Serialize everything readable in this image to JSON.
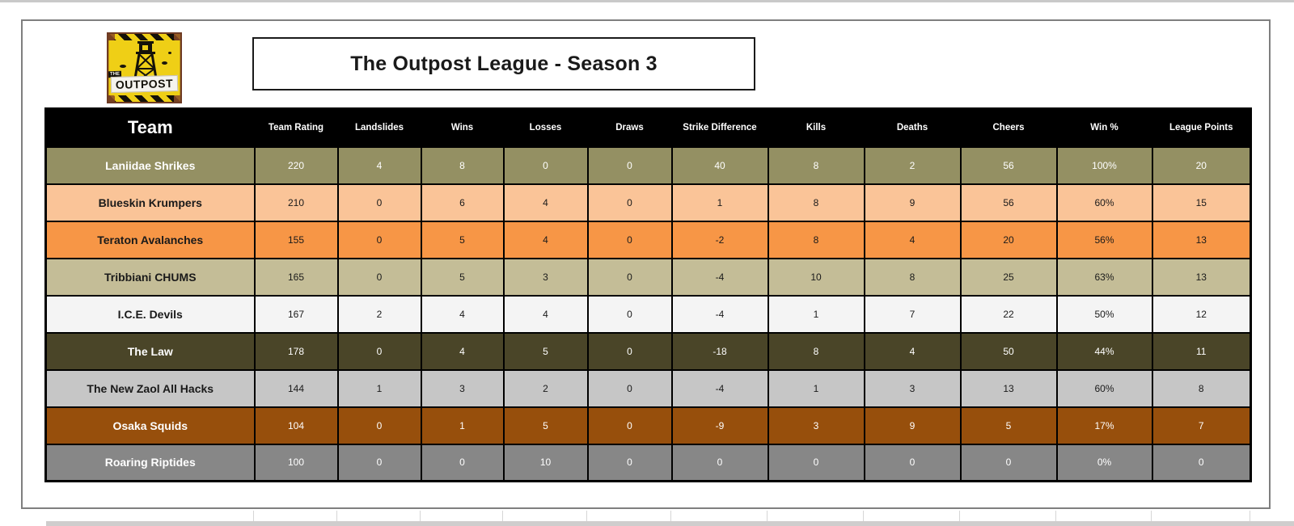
{
  "header": {
    "title": "The Outpost League - Season 3"
  },
  "logo": {
    "name": "outpost-logo",
    "brand_top": "THE",
    "brand": "OUTPOST",
    "sign_color": "#EFCF16",
    "ink_color": "#15120A"
  },
  "table": {
    "header_bg": "#000000",
    "header_fg": "#FFFFFF",
    "columns": [
      {
        "key": "team",
        "label": "Team"
      },
      {
        "key": "rating",
        "label": "Team Rating"
      },
      {
        "key": "landslides",
        "label": "Landslides"
      },
      {
        "key": "wins",
        "label": "Wins"
      },
      {
        "key": "losses",
        "label": "Losses"
      },
      {
        "key": "draws",
        "label": "Draws"
      },
      {
        "key": "strike_difference",
        "label": "Strike Difference"
      },
      {
        "key": "kills",
        "label": "Kills"
      },
      {
        "key": "deaths",
        "label": "Deaths"
      },
      {
        "key": "cheers",
        "label": "Cheers"
      },
      {
        "key": "win_pct",
        "label": "Win %"
      },
      {
        "key": "league_points",
        "label": "League Points"
      }
    ],
    "rows": [
      {
        "team": "Laniidae Shrikes",
        "rating": "220",
        "landslides": "4",
        "wins": "8",
        "losses": "0",
        "draws": "0",
        "strike_difference": "40",
        "kills": "8",
        "deaths": "2",
        "cheers": "56",
        "win_pct": "100%",
        "league_points": "20",
        "bg": "#949063",
        "fg": "#FFFFFF"
      },
      {
        "team": "Blueskin Krumpers",
        "rating": "210",
        "landslides": "0",
        "wins": "6",
        "losses": "4",
        "draws": "0",
        "strike_difference": "1",
        "kills": "8",
        "deaths": "9",
        "cheers": "56",
        "win_pct": "60%",
        "league_points": "15",
        "bg": "#FAC498",
        "fg": "#1A1A1A"
      },
      {
        "team": "Teraton Avalanches",
        "rating": "155",
        "landslides": "0",
        "wins": "5",
        "losses": "4",
        "draws": "0",
        "strike_difference": "-2",
        "kills": "8",
        "deaths": "4",
        "cheers": "20",
        "win_pct": "56%",
        "league_points": "13",
        "bg": "#F79646",
        "fg": "#1A1A1A"
      },
      {
        "team": "Tribbiani CHUMS",
        "rating": "165",
        "landslides": "0",
        "wins": "5",
        "losses": "3",
        "draws": "0",
        "strike_difference": "-4",
        "kills": "10",
        "deaths": "8",
        "cheers": "25",
        "win_pct": "63%",
        "league_points": "13",
        "bg": "#C4BD97",
        "fg": "#1A1A1A"
      },
      {
        "team": "I.C.E. Devils",
        "rating": "167",
        "landslides": "2",
        "wins": "4",
        "losses": "4",
        "draws": "0",
        "strike_difference": "-4",
        "kills": "1",
        "deaths": "7",
        "cheers": "22",
        "win_pct": "50%",
        "league_points": "12",
        "bg": "#F4F4F4",
        "fg": "#1A1A1A"
      },
      {
        "team": "The Law",
        "rating": "178",
        "landslides": "0",
        "wins": "4",
        "losses": "5",
        "draws": "0",
        "strike_difference": "-18",
        "kills": "8",
        "deaths": "4",
        "cheers": "50",
        "win_pct": "44%",
        "league_points": "11",
        "bg": "#4A4528",
        "fg": "#FFFFFF"
      },
      {
        "team": "The New Zaol All Hacks",
        "rating": "144",
        "landslides": "1",
        "wins": "3",
        "losses": "2",
        "draws": "0",
        "strike_difference": "-4",
        "kills": "1",
        "deaths": "3",
        "cheers": "13",
        "win_pct": "60%",
        "league_points": "8",
        "bg": "#C6C6C6",
        "fg": "#1A1A1A"
      },
      {
        "team": "Osaka Squids",
        "rating": "104",
        "landslides": "0",
        "wins": "1",
        "losses": "5",
        "draws": "0",
        "strike_difference": "-9",
        "kills": "3",
        "deaths": "9",
        "cheers": "5",
        "win_pct": "17%",
        "league_points": "7",
        "bg": "#974F0C",
        "fg": "#FFFFFF"
      },
      {
        "team": "Roaring Riptides",
        "rating": "100",
        "landslides": "0",
        "wins": "0",
        "losses": "10",
        "draws": "0",
        "strike_difference": "0",
        "kills": "0",
        "deaths": "0",
        "cheers": "0",
        "win_pct": "0%",
        "league_points": "0",
        "bg": "#878787",
        "fg": "#FFFFFF"
      }
    ]
  }
}
